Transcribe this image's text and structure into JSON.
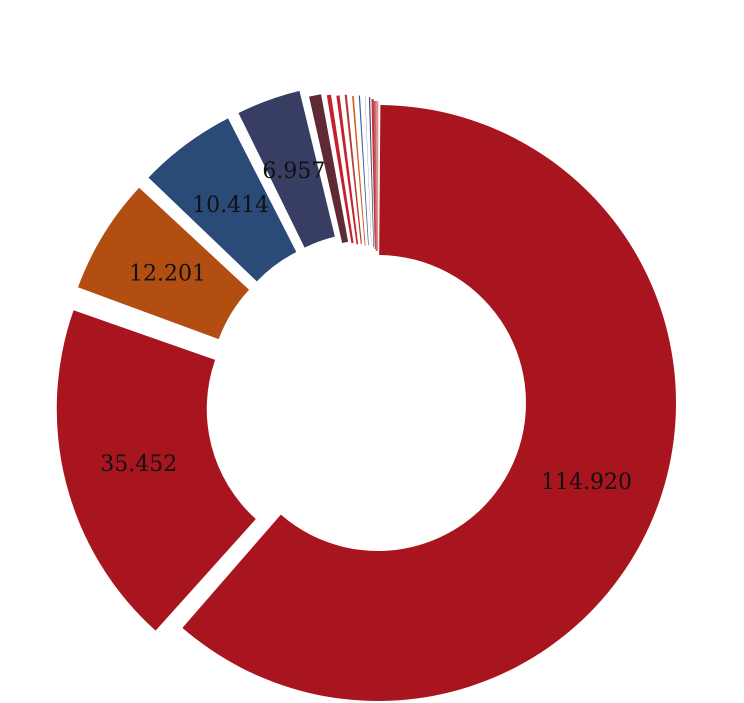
{
  "chart_data": {
    "type": "pie",
    "variant": "donut",
    "slices": [
      {
        "value": 114.92,
        "label": "114.920",
        "color": "#a8151e"
      },
      {
        "value": 35.452,
        "label": "35.452",
        "color": "#a8151e"
      },
      {
        "value": 12.201,
        "label": "12.201",
        "color": "#b34e13"
      },
      {
        "value": 10.414,
        "label": "10.414",
        "color": "#2a4a77"
      },
      {
        "value": 6.957,
        "label": "6.957",
        "color": "#383d63"
      },
      {
        "value": 1.7,
        "label": "",
        "color": "#5e2a33"
      },
      {
        "value": 0.9,
        "label": "",
        "color": "#c4212c"
      },
      {
        "value": 0.8,
        "label": "",
        "color": "#c4212c"
      },
      {
        "value": 0.7,
        "label": "",
        "color": "#b83a33"
      },
      {
        "value": 0.65,
        "label": "",
        "color": "#d46320"
      },
      {
        "value": 0.6,
        "label": "",
        "color": "#3a5f94"
      },
      {
        "value": 0.5,
        "label": "",
        "color": "#2f4d7c"
      },
      {
        "value": 0.35,
        "label": "",
        "color": "#5b3f70"
      },
      {
        "value": 0.25,
        "label": "",
        "color": "#b03848"
      },
      {
        "value": 0.2,
        "label": "",
        "color": "#c86060"
      },
      {
        "value": 0.2,
        "label": "",
        "color": "#e09090"
      }
    ],
    "legend": "none",
    "title": ""
  }
}
